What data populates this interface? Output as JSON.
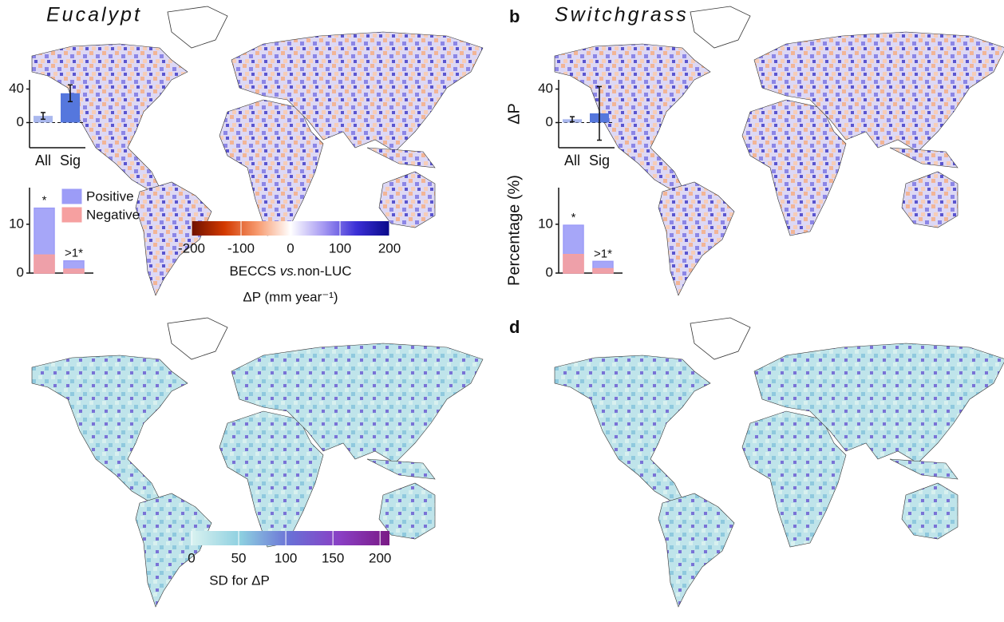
{
  "panel_a": {
    "title": "Eucalypt",
    "mean_chart": {
      "type": "bar",
      "categories": [
        "All",
        "Sig"
      ],
      "values": [
        8,
        35
      ],
      "errors": [
        4,
        10
      ],
      "colors": [
        "#aab8ee",
        "#5577dd"
      ],
      "ylim": [
        -30,
        51
      ],
      "yticks": [
        0,
        40
      ]
    },
    "pct_chart": {
      "type": "bar",
      "categories": [
        "*",
        ">1*"
      ],
      "series": [
        {
          "name": "Positive",
          "color": "#9c9cf7",
          "values": [
            13.3,
            2.5
          ]
        },
        {
          "name": "Negative",
          "color": "#f6a0a0",
          "values": [
            3.7,
            0.8
          ]
        }
      ],
      "ylim": [
        0,
        17.5
      ],
      "yticks": [
        0,
        10
      ]
    }
  },
  "panel_b": {
    "label": "b",
    "title": "Switchgrass",
    "mean_chart": {
      "type": "bar",
      "ylabel": "ΔP",
      "categories": [
        "All",
        "Sig"
      ],
      "values": [
        4,
        11
      ],
      "errors": [
        3,
        32
      ],
      "colors": [
        "#aab8ee",
        "#5577dd"
      ],
      "ylim": [
        -30,
        51
      ],
      "yticks": [
        0,
        40
      ]
    },
    "pct_chart": {
      "type": "bar",
      "ylabel": "Percentage (%)",
      "categories": [
        "*",
        ">1*"
      ],
      "series": [
        {
          "color": "#9c9cf7",
          "values": [
            9.8,
            2.4
          ]
        },
        {
          "color": "#f6a0a0",
          "values": [
            3.8,
            0.9
          ]
        }
      ],
      "ylim": [
        0,
        17.5
      ],
      "yticks": [
        0,
        10
      ]
    }
  },
  "panel_d": {
    "label": "d"
  },
  "colorbar_delta": {
    "label_parts": [
      "BECCS",
      "vs.",
      "non-LUC"
    ],
    "unit_label": "ΔP (mm year⁻¹)",
    "lim": [
      -200,
      200
    ],
    "ticks": [
      -200,
      -100,
      0,
      100,
      200
    ],
    "colors": [
      "#6e1000",
      "#d33a00",
      "#f79a6e",
      "#ffffff",
      "#a699f2",
      "#3b2fd6",
      "#0a0a8a"
    ]
  },
  "colorbar_sd": {
    "label": "SD for ΔP",
    "lim": [
      0,
      210
    ],
    "ticks": [
      0,
      50,
      100,
      150,
      200
    ],
    "colors": [
      "#d9f2f0",
      "#8dcfe0",
      "#6a6fd6",
      "#8a3fc4",
      "#7a1a85"
    ]
  }
}
